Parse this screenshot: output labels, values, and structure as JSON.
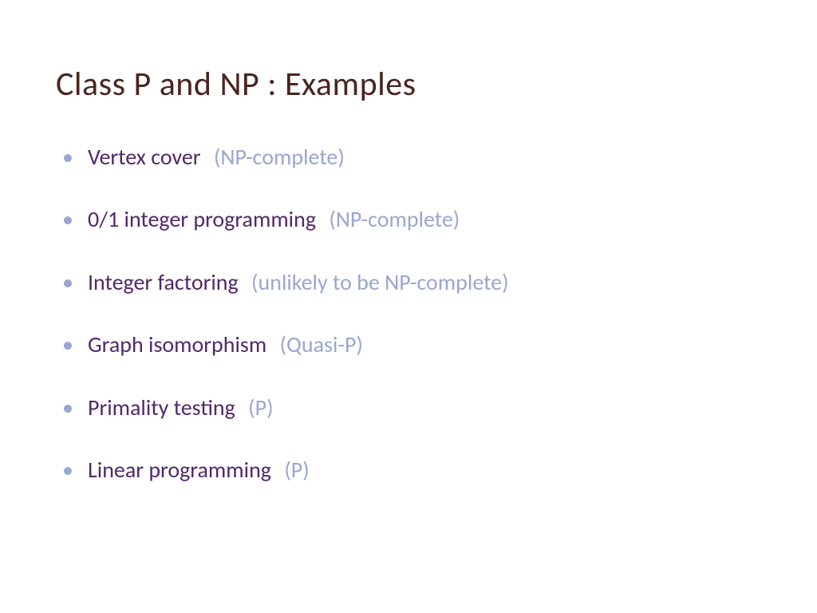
{
  "slide": {
    "title": "Class P and NP :  Examples",
    "title_color": "#4a2520",
    "bullet_color": "#9aa6d1",
    "label_color": "#53276b",
    "note_color": "#9aa6d1",
    "background_color": "#ffffff",
    "title_fontsize": 42,
    "body_fontsize": 28,
    "items": [
      {
        "label": "Vertex cover",
        "note": "(NP-complete)"
      },
      {
        "label": "0/1 integer programming",
        "note": "(NP-complete)"
      },
      {
        "label": "Integer factoring",
        "note": "(unlikely to be NP-complete)"
      },
      {
        "label": "Graph isomorphism",
        "note": "(Quasi-P)"
      },
      {
        "label": "Primality testing",
        "note": "(P)"
      },
      {
        "label": "Linear programming",
        "note": "(P)"
      }
    ]
  }
}
